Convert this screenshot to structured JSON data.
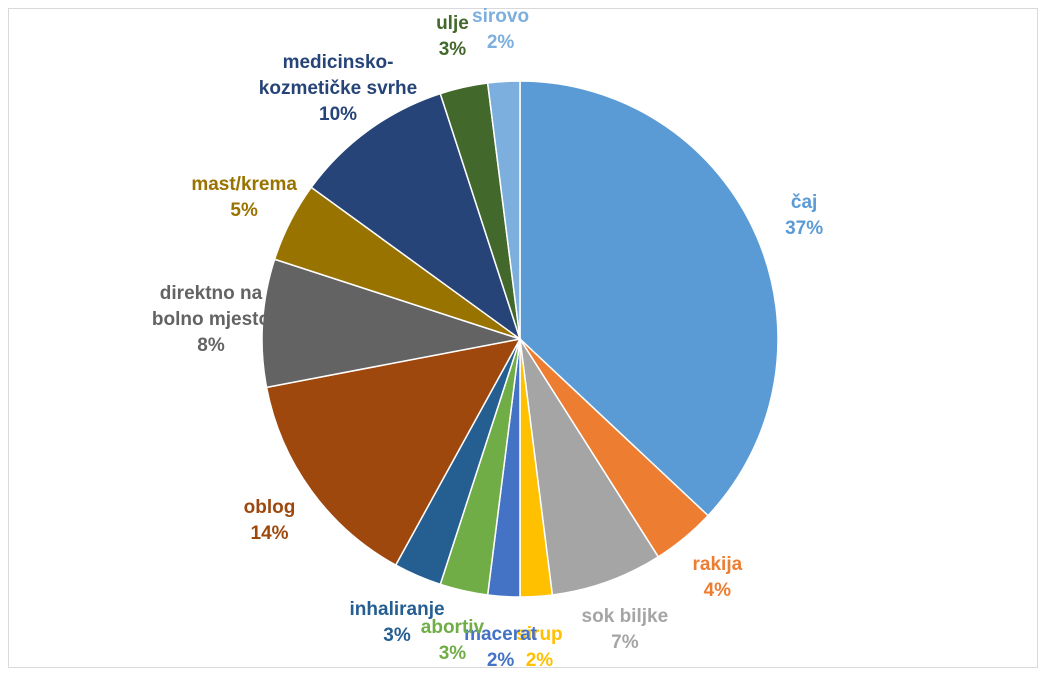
{
  "chart_data": {
    "type": "pie",
    "categories": [
      "čaj",
      "rakija",
      "sok biljke",
      "sirup",
      "macerat",
      "abortiv",
      "inhaliranje",
      "oblog",
      "direktno na bolno mjesto",
      "mast/krema",
      "medicinsko-kozmetičke svrhe",
      "ulje",
      "sirovo"
    ],
    "values": [
      37,
      4,
      7,
      2,
      2,
      3,
      3,
      14,
      8,
      5,
      10,
      3,
      2
    ],
    "value_labels": [
      "37%",
      "4%",
      "7%",
      "2%",
      "2%",
      "3%",
      "3%",
      "14%",
      "8%",
      "5%",
      "10%",
      "3%",
      "2%"
    ],
    "colors": [
      "#5b9bd5",
      "#ed7d31",
      "#a5a5a5",
      "#ffc000",
      "#4472c4",
      "#70ad47",
      "#255e91",
      "#9e480e",
      "#636363",
      "#997300",
      "#264478",
      "#43682b",
      "#7cafdd"
    ]
  }
}
